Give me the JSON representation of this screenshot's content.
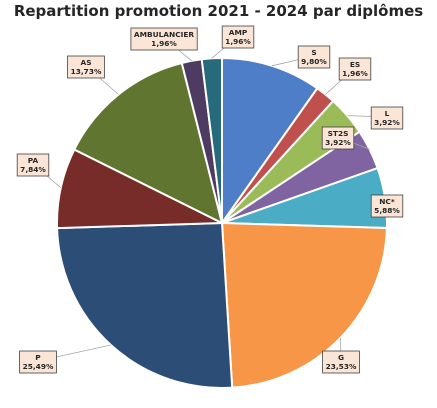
{
  "chart_data": {
    "type": "pie",
    "title": "Repartition promotion 2021 - 2024 par diplômes",
    "start_angle_deg": 0,
    "direction": "clockwise",
    "slices": [
      {
        "name": "S",
        "value": 9.8,
        "pct_label": "9,80%",
        "color": "#4e7ec7"
      },
      {
        "name": "ES",
        "value": 1.96,
        "pct_label": "1,96%",
        "color": "#c0504d"
      },
      {
        "name": "L",
        "value": 3.92,
        "pct_label": "3,92%",
        "color": "#9bbb59"
      },
      {
        "name": "ST2S",
        "value": 3.92,
        "pct_label": "3,92%",
        "color": "#8064a2"
      },
      {
        "name": "NC*",
        "value": 5.88,
        "pct_label": "5,88%",
        "color": "#4bacc6"
      },
      {
        "name": "G",
        "value": 23.53,
        "pct_label": "23,53%",
        "color": "#f79646"
      },
      {
        "name": "P",
        "value": 25.49,
        "pct_label": "25,49%",
        "color": "#2c4d75"
      },
      {
        "name": "PA",
        "value": 7.84,
        "pct_label": "7,84%",
        "color": "#772c2a"
      },
      {
        "name": "AS",
        "value": 13.73,
        "pct_label": "13,73%",
        "color": "#5f7530"
      },
      {
        "name": "AMBULANCIER",
        "value": 1.96,
        "pct_label": "1,96%",
        "color": "#4d3b62"
      },
      {
        "name": "AMP",
        "value": 1.96,
        "pct_label": "1,96%",
        "color": "#276a7c"
      }
    ]
  }
}
